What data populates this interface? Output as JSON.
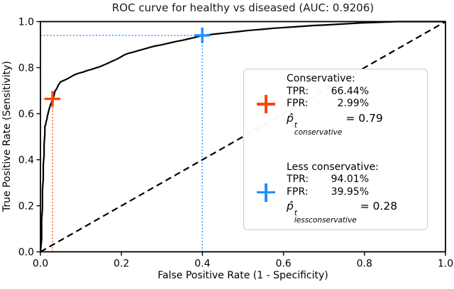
{
  "colors": {
    "conservative": "#ff4500",
    "less_conservative": "#1e90ff",
    "curve": "#000000",
    "diagonal": "#000000",
    "frame": "#000000",
    "legend_border": "#cccccc"
  },
  "chart_data": {
    "type": "line",
    "title": "ROC curve for healthy vs diseased (AUC: 0.9206)",
    "xlabel": "False Positive Rate (1 - Specificity)",
    "ylabel": "True Positive Rate (Sensitivity)",
    "auc": 0.9206,
    "xlim": [
      0.0,
      1.0
    ],
    "ylim": [
      0.0,
      1.0
    ],
    "grid": false,
    "legend_position": "center-right",
    "x_tick_labels": [
      "0.0",
      "0.2",
      "0.4",
      "0.6",
      "0.8",
      "1.0"
    ],
    "y_tick_labels": [
      "0.0",
      "0.2",
      "0.4",
      "0.6",
      "0.8",
      "1.0"
    ],
    "x_ticks": [
      0.0,
      0.2,
      0.4,
      0.6,
      0.8,
      1.0
    ],
    "y_ticks": [
      0.0,
      0.2,
      0.4,
      0.6,
      0.8,
      1.0
    ],
    "series": [
      {
        "name": "ROC curve",
        "style": "solid",
        "points": [
          [
            0,
            0
          ],
          [
            0.003,
            0.055
          ],
          [
            0.003,
            0.14
          ],
          [
            0.005,
            0.19
          ],
          [
            0.005,
            0.27
          ],
          [
            0.007,
            0.315
          ],
          [
            0.007,
            0.38
          ],
          [
            0.009,
            0.42
          ],
          [
            0.009,
            0.465
          ],
          [
            0.01,
            0.49
          ],
          [
            0.011,
            0.515
          ],
          [
            0.011,
            0.545
          ],
          [
            0.013,
            0.553
          ],
          [
            0.014,
            0.565
          ],
          [
            0.016,
            0.576
          ],
          [
            0.017,
            0.588
          ],
          [
            0.019,
            0.602
          ],
          [
            0.021,
            0.617
          ],
          [
            0.023,
            0.628
          ],
          [
            0.025,
            0.639
          ],
          [
            0.027,
            0.648
          ],
          [
            0.0299,
            0.6644
          ],
          [
            0.032,
            0.671
          ],
          [
            0.034,
            0.682
          ],
          [
            0.035,
            0.693
          ],
          [
            0.037,
            0.701
          ],
          [
            0.04,
            0.708
          ],
          [
            0.042,
            0.716
          ],
          [
            0.044,
            0.724
          ],
          [
            0.047,
            0.731
          ],
          [
            0.049,
            0.737
          ],
          [
            0.053,
            0.741
          ],
          [
            0.057,
            0.744
          ],
          [
            0.061,
            0.747
          ],
          [
            0.066,
            0.751
          ],
          [
            0.071,
            0.756
          ],
          [
            0.076,
            0.761
          ],
          [
            0.081,
            0.766
          ],
          [
            0.087,
            0.771
          ],
          [
            0.093,
            0.775
          ],
          [
            0.099,
            0.778
          ],
          [
            0.106,
            0.781
          ],
          [
            0.113,
            0.786
          ],
          [
            0.121,
            0.79
          ],
          [
            0.129,
            0.794
          ],
          [
            0.137,
            0.799
          ],
          [
            0.145,
            0.803
          ],
          [
            0.153,
            0.809
          ],
          [
            0.161,
            0.815
          ],
          [
            0.169,
            0.821
          ],
          [
            0.177,
            0.828
          ],
          [
            0.185,
            0.834
          ],
          [
            0.193,
            0.841
          ],
          [
            0.201,
            0.849
          ],
          [
            0.209,
            0.857
          ],
          [
            0.217,
            0.862
          ],
          [
            0.226,
            0.866
          ],
          [
            0.236,
            0.871
          ],
          [
            0.246,
            0.876
          ],
          [
            0.256,
            0.881
          ],
          [
            0.266,
            0.886
          ],
          [
            0.276,
            0.891
          ],
          [
            0.286,
            0.895
          ],
          [
            0.296,
            0.898
          ],
          [
            0.306,
            0.902
          ],
          [
            0.316,
            0.906
          ],
          [
            0.326,
            0.91
          ],
          [
            0.336,
            0.914
          ],
          [
            0.346,
            0.917
          ],
          [
            0.356,
            0.921
          ],
          [
            0.366,
            0.925
          ],
          [
            0.376,
            0.929
          ],
          [
            0.388,
            0.934
          ],
          [
            0.3995,
            0.9401
          ],
          [
            0.412,
            0.942
          ],
          [
            0.426,
            0.945
          ],
          [
            0.442,
            0.948
          ],
          [
            0.458,
            0.951
          ],
          [
            0.474,
            0.954
          ],
          [
            0.49,
            0.957
          ],
          [
            0.51,
            0.961
          ],
          [
            0.53,
            0.964
          ],
          [
            0.55,
            0.967
          ],
          [
            0.575,
            0.971
          ],
          [
            0.6,
            0.974
          ],
          [
            0.625,
            0.977
          ],
          [
            0.65,
            0.98
          ],
          [
            0.675,
            0.983
          ],
          [
            0.7,
            0.985
          ],
          [
            0.73,
            0.988
          ],
          [
            0.76,
            0.991
          ],
          [
            0.79,
            0.994
          ],
          [
            0.82,
            0.996
          ],
          [
            0.85,
            0.998
          ],
          [
            0.88,
            1.0
          ],
          [
            1.0,
            1.0
          ]
        ]
      },
      {
        "name": "chance diagonal",
        "style": "dashed",
        "points": [
          [
            0,
            0
          ],
          [
            1,
            1
          ]
        ]
      }
    ],
    "markers": [
      {
        "name": "conservative",
        "x": 0.0299,
        "y": 0.6644,
        "color": "#ff4500"
      },
      {
        "name": "less_conservative",
        "x": 0.3995,
        "y": 0.9401,
        "color": "#1e90ff"
      }
    ]
  },
  "legend": {
    "conservative": {
      "heading": "Conservative:",
      "tpr_label": "TPR:",
      "tpr_value": "66.44%",
      "fpr_label": "FPR:",
      "fpr_value": "2.99%",
      "p_hat": "p̂",
      "p_sup": "t",
      "p_sub": "conservative",
      "p_value": "= 0.79"
    },
    "less_conservative": {
      "heading": "Less conservative:",
      "tpr_label": "TPR:",
      "tpr_value": "94.01%",
      "fpr_label": "FPR:",
      "fpr_value": "39.95%",
      "p_hat": "p̂",
      "p_sup": "t",
      "p_sub": "lessconservative",
      "p_value": "= 0.28"
    }
  }
}
